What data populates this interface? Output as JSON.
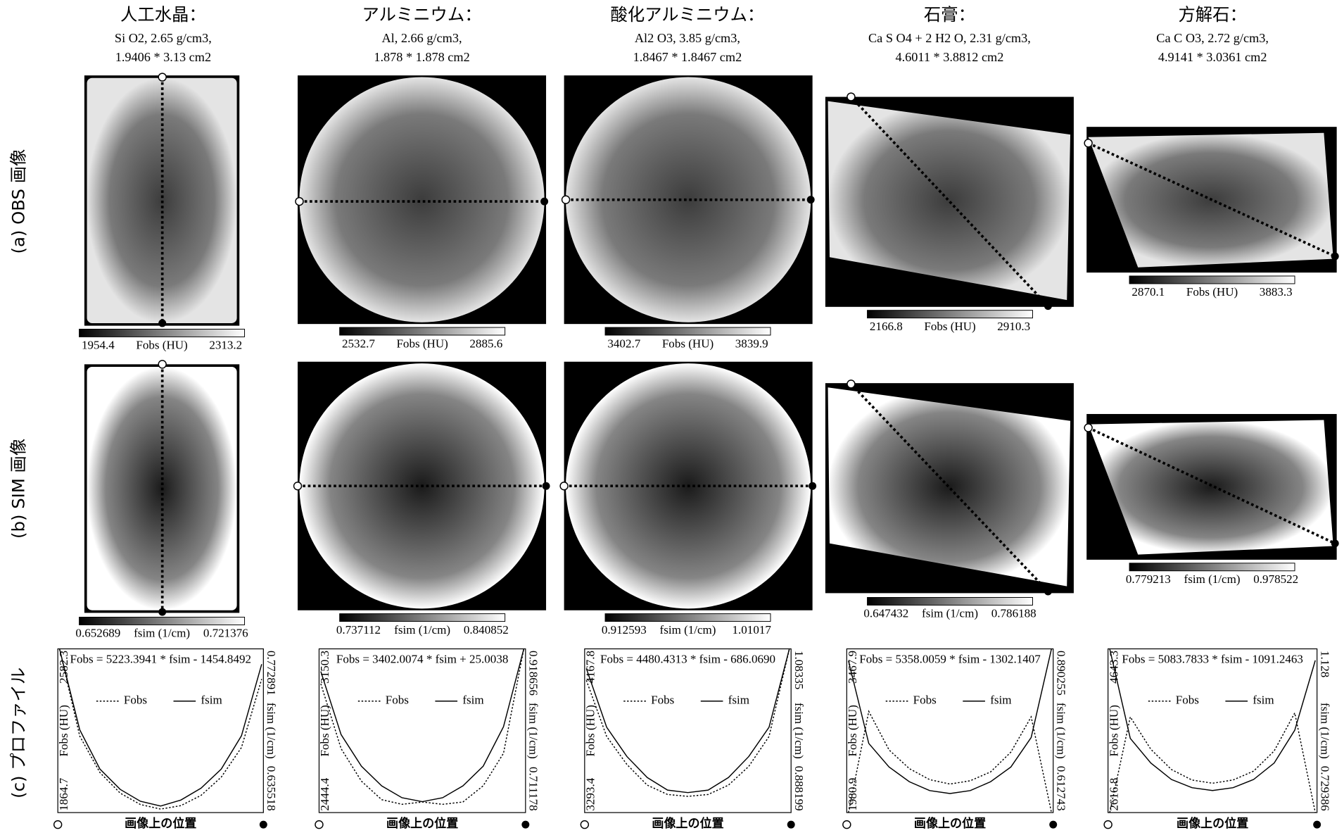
{
  "row_labels": [
    "(a) OBS 画像",
    "(b) SIM 画像",
    "(c) プロファイル"
  ],
  "columns": [
    {
      "title": "人工水晶：",
      "subtitle": [
        "Si O2, 2.65 g/cm3,",
        "1.9406 * 3.13 cm2"
      ],
      "obs_colorbar": {
        "min": 1954.4,
        "label": "Fobs (HU)",
        "max": 2313.2
      },
      "sim_colorbar": {
        "min": 0.652689,
        "label": "fsim (1/cm)",
        "max": 0.721376
      },
      "profile": {
        "equation": "Fobs = 5223.3941 * fsim - 1454.8492",
        "xlabel": "画像上の位置",
        "ylabel": "Fobs (HU)",
        "y2label": "fsim (1/cm)",
        "ylim": [
          1864.7,
          2582.3
        ],
        "y2lim": [
          0.635518,
          0.772891
        ],
        "series": [
          {
            "name": "Fobs",
            "values": [
              2582.3,
              2200,
              2040,
              1950,
              1900,
              1880,
              1895,
              1940,
              2020,
              2150,
              2450
            ]
          },
          {
            "name": "fsim",
            "axis": "y2",
            "values": [
              0.772891,
              0.705,
              0.672,
              0.655,
              0.645,
              0.641,
              0.646,
              0.656,
              0.672,
              0.7,
              0.76
            ]
          }
        ]
      }
    },
    {
      "title": "アルミニウム：",
      "subtitle": [
        "Al, 2.66 g/cm3,",
        "1.878 * 1.878 cm2"
      ],
      "obs_colorbar": {
        "min": 2532.7,
        "label": "Fobs (HU)",
        "max": 2885.6
      },
      "sim_colorbar": {
        "min": 0.737112,
        "label": "fsim (1/cm)",
        "max": 0.840852
      },
      "profile": {
        "equation": "Fobs = 3402.0074 * fsim + 25.0038",
        "xlabel": "画像上の位置",
        "ylabel": "Fobs (HU)",
        "y2label": "fsim (1/cm)",
        "ylim": [
          2444.4,
          3150.3
        ],
        "y2lim": [
          0.711178,
          0.918656
        ],
        "series": [
          {
            "name": "Fobs",
            "values": [
              3000,
              2720,
              2580,
              2500,
              2480,
              2490,
              2480,
              2490,
              2560,
              2700,
              3150.3
            ]
          },
          {
            "name": "fsim",
            "axis": "y2",
            "values": [
              0.89,
              0.81,
              0.77,
              0.745,
              0.73,
              0.725,
              0.73,
              0.745,
              0.77,
              0.82,
              0.918656
            ]
          }
        ]
      }
    },
    {
      "title": "酸化アルミニウム：",
      "subtitle": [
        "Al2 O3, 3.85 g/cm3,",
        "1.8467 * 1.8467 cm2"
      ],
      "obs_colorbar": {
        "min": 3402.7,
        "label": "Fobs (HU)",
        "max": 3839.9
      },
      "sim_colorbar": {
        "min": 0.912593,
        "label": "fsim (1/cm)",
        "max": 1.01017
      },
      "profile": {
        "equation": "Fobs = 4480.4313 * fsim - 686.0690",
        "xlabel": "画像上の位置",
        "ylabel": "Fobs (HU)",
        "y2label": "fsim (1/cm)",
        "ylim": [
          3293.4,
          4167.8
        ],
        "y2lim": [
          0.888199,
          1.08335
        ],
        "series": [
          {
            "name": "Fobs",
            "values": [
              4000,
              3700,
              3550,
              3440,
              3390,
              3380,
              3390,
              3440,
              3540,
              3700,
              4167.8
            ]
          },
          {
            "name": "fsim",
            "axis": "y2",
            "values": [
              1.06,
              0.99,
              0.955,
              0.93,
              0.915,
              0.912,
              0.915,
              0.93,
              0.955,
              0.99,
              1.08335
            ]
          }
        ]
      }
    },
    {
      "title": "石膏：",
      "subtitle": [
        "Ca S O4 + 2 H2 O, 2.31 g/cm3,",
        "4.6011 * 3.8812 cm2"
      ],
      "obs_colorbar": {
        "min": 2166.8,
        "label": "Fobs (HU)",
        "max": 2910.3
      },
      "sim_colorbar": {
        "min": 0.647432,
        "label": "fsim (1/cm)",
        "max": 0.786188
      },
      "profile": {
        "equation": "Fobs = 5358.0059 * fsim - 1302.1407",
        "xlabel": "画像上の位置",
        "ylabel": "Fobs (HU)",
        "y2label": "fsim (1/cm)",
        "ylim": [
          1980.9,
          3467.9
        ],
        "y2lim": [
          0.612743,
          0.890255
        ],
        "series": [
          {
            "name": "Fobs",
            "values": [
              1980.9,
              2900,
              2550,
              2380,
              2280,
              2240,
              2270,
              2350,
              2530,
              2850,
              1980.9
            ]
          },
          {
            "name": "fsim",
            "axis": "y2",
            "values": [
              0.87,
              0.73,
              0.69,
              0.665,
              0.65,
              0.645,
              0.65,
              0.665,
              0.69,
              0.74,
              0.890255
            ]
          }
        ]
      }
    },
    {
      "title": "方解石：",
      "subtitle": [
        "Ca C O3, 2.72 g/cm3,",
        "4.9141 * 3.0361 cm2"
      ],
      "obs_colorbar": {
        "min": 2870.1,
        "label": "Fobs (HU)",
        "max": 3883.3
      },
      "sim_colorbar": {
        "min": 0.779213,
        "label": "fsim (1/cm)",
        "max": 0.978522
      },
      "profile": {
        "equation": "Fobs = 5083.7833 * fsim - 1091.2463",
        "xlabel": "画像上の位置",
        "ylabel": "Fobs (HU)",
        "y2label": "fsim (1/cm)",
        "ylim": [
          2616.8,
          4643.3
        ],
        "y2lim": [
          0.729386,
          1.128
        ],
        "series": [
          {
            "name": "Fobs",
            "values": [
              2616.8,
              3800,
              3400,
              3150,
              3020,
              2980,
              3020,
              3130,
              3380,
              3850,
              2616.8
            ]
          },
          {
            "name": "fsim",
            "axis": "y2",
            "values": [
              1.128,
              0.91,
              0.85,
              0.81,
              0.79,
              0.783,
              0.79,
              0.81,
              0.85,
              0.93,
              1.1
            ]
          }
        ]
      }
    }
  ]
}
